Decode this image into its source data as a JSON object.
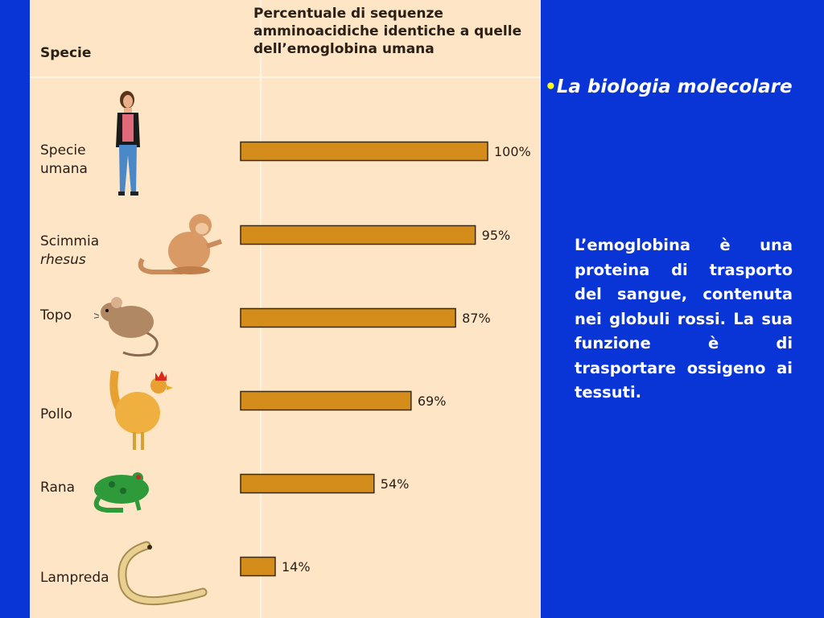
{
  "table": {
    "species_header": "Specie",
    "title_header": "Percentuale di sequenze amminoacidiche identiche a quelle dell’emoglobina umana"
  },
  "species": [
    {
      "line1": "Specie",
      "line2": "umana",
      "italic2": false
    },
    {
      "line1": "Scimmia",
      "line2": "rhesus",
      "italic2": true
    },
    {
      "line1": "Topo",
      "line2": "",
      "italic2": false
    },
    {
      "line1": "Pollo",
      "line2": "",
      "italic2": false
    },
    {
      "line1": "Rana",
      "line2": "",
      "italic2": false
    },
    {
      "line1": "Lampreda",
      "line2": "",
      "italic2": false
    }
  ],
  "chart_data": {
    "type": "bar",
    "orientation": "horizontal",
    "categories": [
      "Specie umana",
      "Scimmia rhesus",
      "Topo",
      "Pollo",
      "Rana",
      "Lampreda"
    ],
    "values": [
      100,
      95,
      87,
      69,
      54,
      14
    ],
    "value_labels": [
      "100%",
      "95%",
      "87%",
      "69%",
      "54%",
      "14%"
    ],
    "xlim": [
      0,
      100
    ],
    "bar_color": "#d48c1a"
  },
  "side": {
    "bullet": "•",
    "title": "La biologia molecolare",
    "description": "L’emoglobina è una proteina di trasporto del sangue, contenuta nei globuli rossi. La sua funzione è di trasportare ossigeno ai tessuti."
  },
  "colors": {
    "background": "#0a35d6",
    "panel": "#fde5c5",
    "bullet": "#ffff00",
    "text": "#ffffff"
  }
}
